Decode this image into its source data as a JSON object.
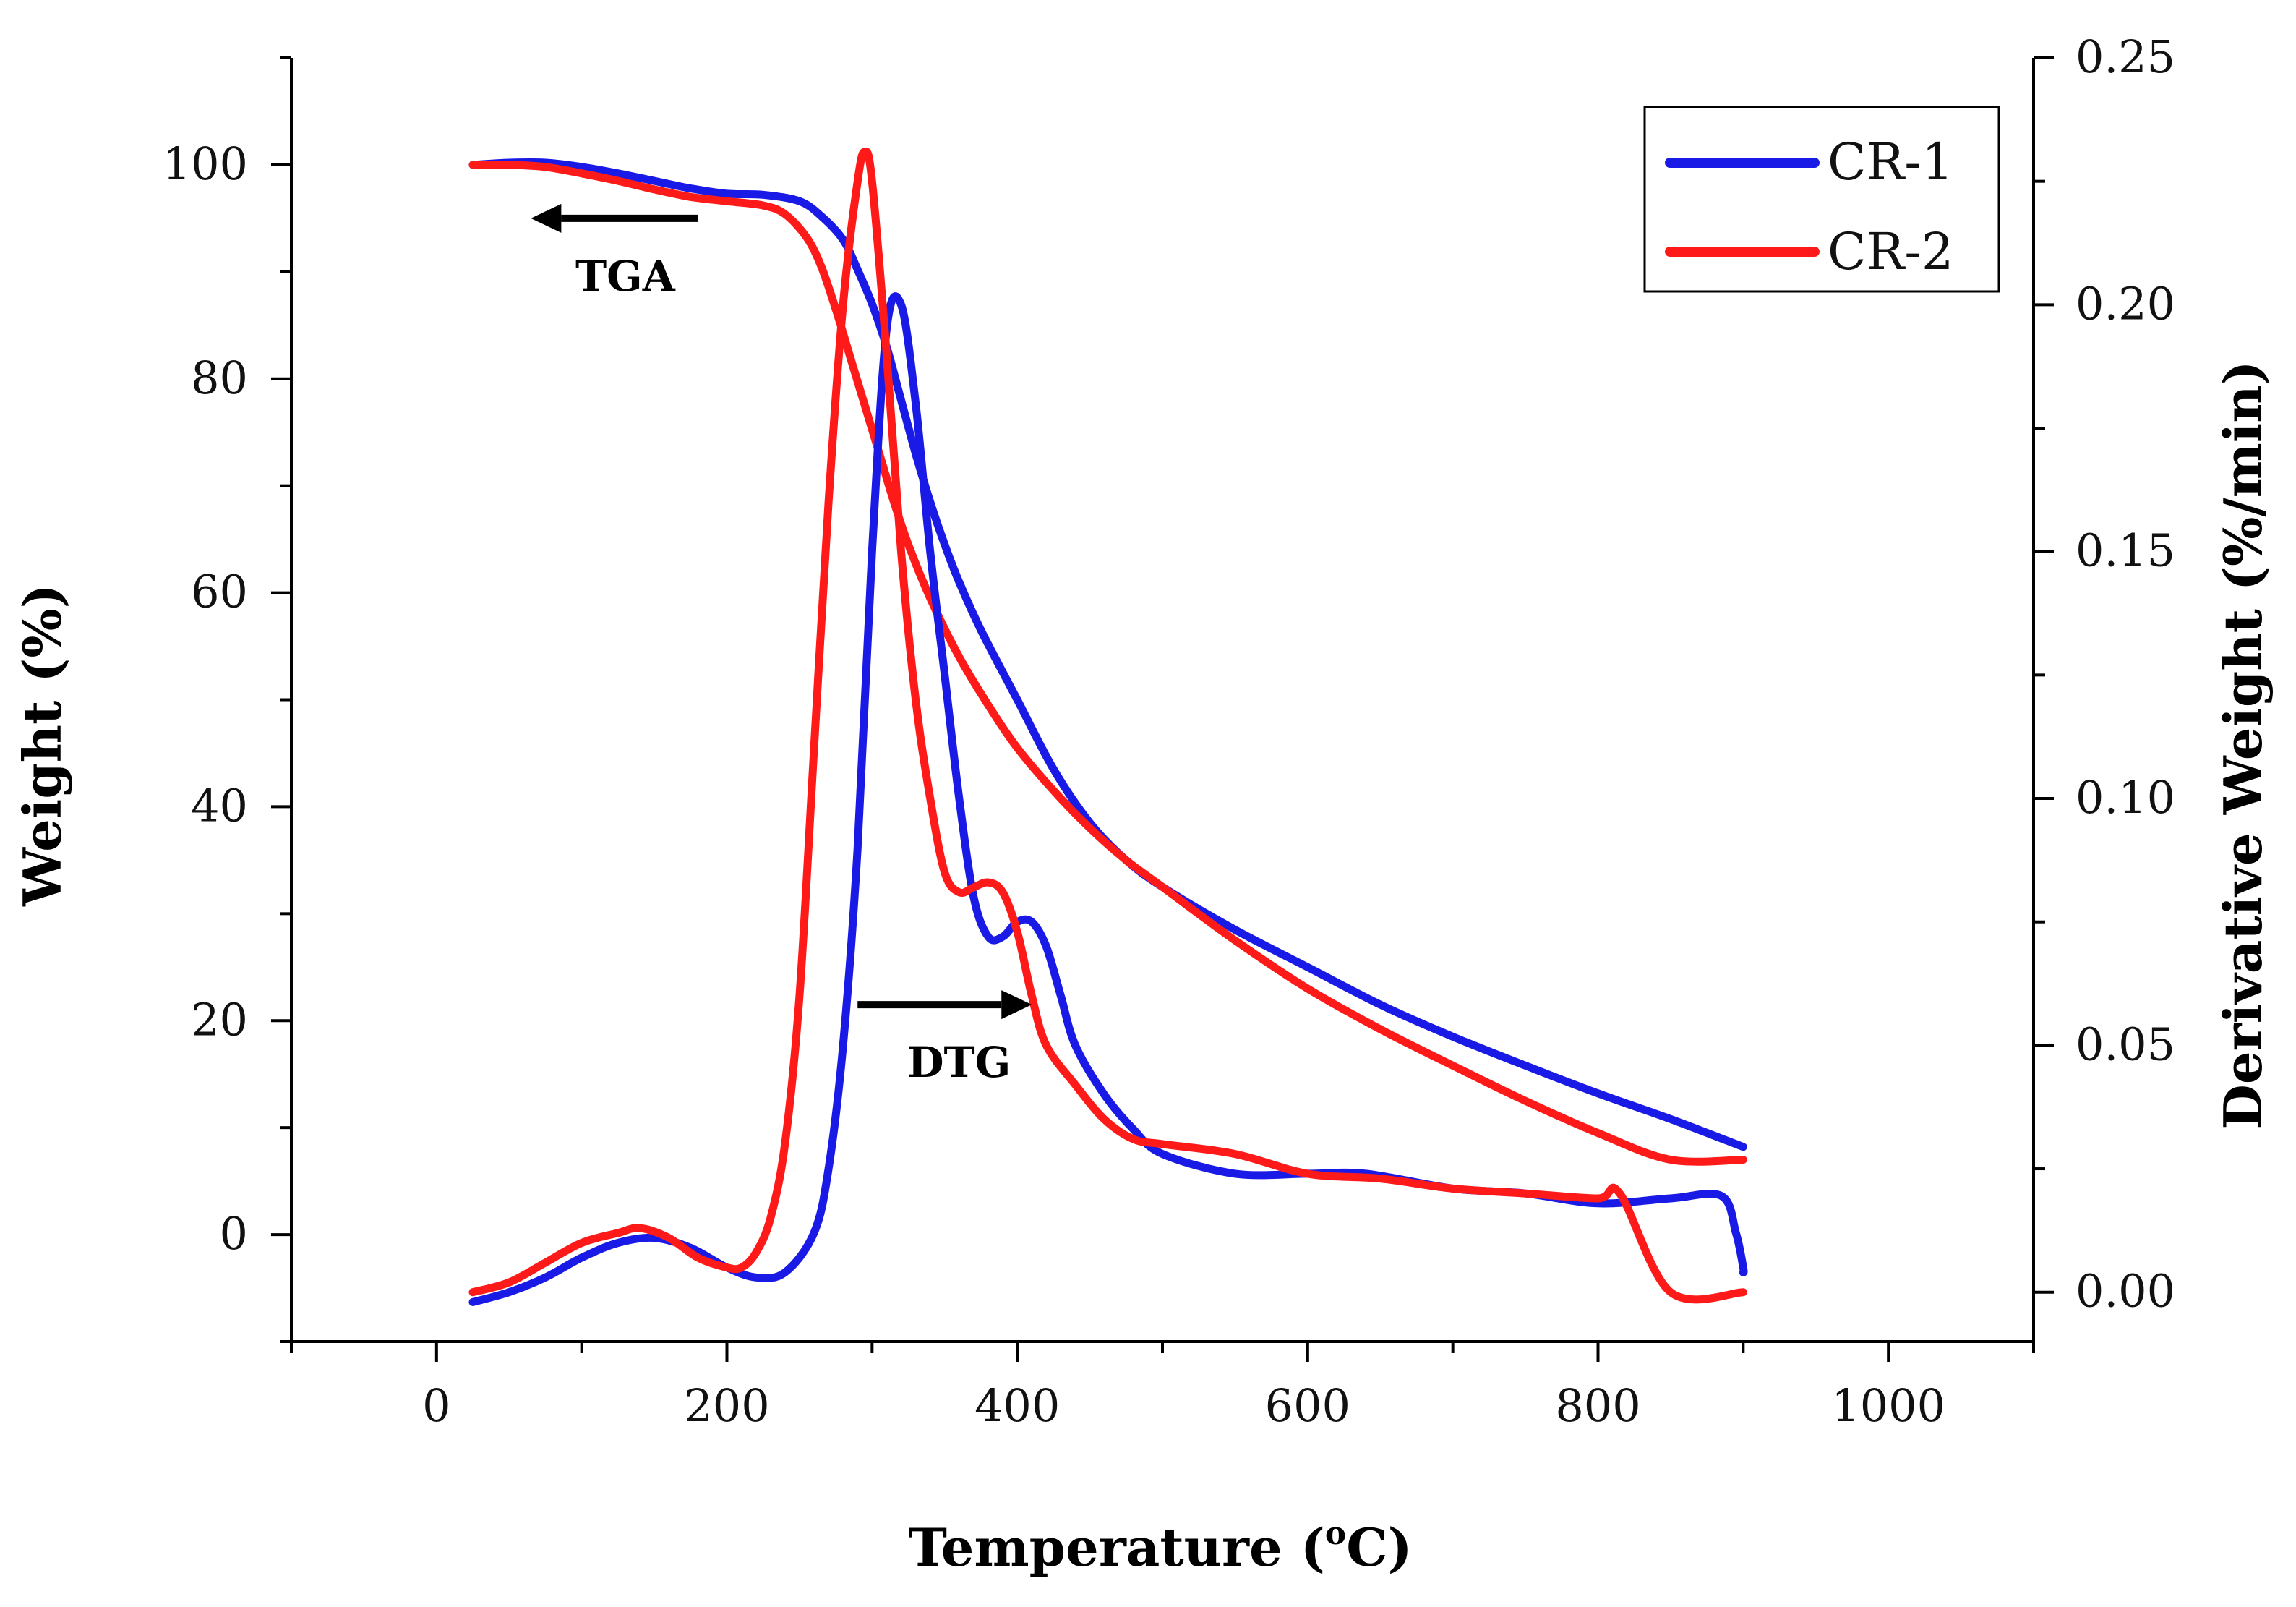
{
  "chart_data": {
    "type": "line",
    "xlabel": "Temperature (°C)",
    "xlabel_main": "Temperature (",
    "xlabel_sup": "o",
    "xlabel_end": "C)",
    "ylabel": "Weight (%)",
    "y2label": "Derivative Weight (%/min)",
    "xlim": [
      -100,
      1100
    ],
    "ylim": [
      -10,
      110
    ],
    "y2lim": [
      -0.01,
      0.25
    ],
    "xticks": [
      0,
      200,
      400,
      600,
      800,
      1000
    ],
    "yticks": [
      0,
      20,
      40,
      60,
      80,
      100
    ],
    "y2ticks": [
      "0.00",
      "0.05",
      "0.10",
      "0.15",
      "0.20",
      "0.25"
    ],
    "grid": false,
    "legend_position": "top-right",
    "legend": [
      {
        "name": "CR-1",
        "color": "#1a1ae6"
      },
      {
        "name": "CR-2",
        "color": "#ff1a1a"
      }
    ],
    "annotations": [
      {
        "text": "TGA",
        "arrow": "left",
        "x": 180,
        "y": 95,
        "x_end": 65
      },
      {
        "text": "DTG",
        "arrow": "right",
        "x": 290,
        "y": 21.5,
        "x_end": 410
      }
    ],
    "series": [
      {
        "name": "CR-1",
        "kind": "TGA",
        "axis": "left",
        "color": "#1a1ae6",
        "x": [
          25,
          50,
          75,
          100,
          125,
          150,
          175,
          200,
          225,
          250,
          265,
          280,
          290,
          300,
          310,
          320,
          330,
          340,
          350,
          360,
          375,
          400,
          425,
          450,
          475,
          500,
          550,
          600,
          650,
          700,
          750,
          800,
          850,
          900
        ],
        "y": [
          100,
          100.2,
          100.2,
          99.8,
          99.2,
          98.5,
          97.8,
          97.3,
          97.2,
          96.6,
          95.2,
          93,
          90.2,
          87,
          83,
          78,
          73,
          68.5,
          64.5,
          61,
          56.5,
          50,
          43.5,
          38.5,
          35,
          32.5,
          28.5,
          25,
          21.5,
          18.5,
          15.8,
          13.2,
          10.8,
          8.2
        ]
      },
      {
        "name": "CR-2",
        "kind": "TGA",
        "axis": "left",
        "color": "#ff1a1a",
        "x": [
          25,
          50,
          75,
          100,
          125,
          150,
          175,
          200,
          225,
          240,
          255,
          265,
          275,
          285,
          295,
          305,
          315,
          325,
          340,
          360,
          380,
          400,
          425,
          450,
          475,
          500,
          550,
          600,
          650,
          700,
          750,
          800,
          850,
          900
        ],
        "y": [
          100,
          100,
          99.8,
          99.2,
          98.5,
          97.7,
          97,
          96.6,
          96.2,
          95.4,
          93.2,
          90.5,
          86.5,
          82,
          77.5,
          73,
          68.5,
          64.5,
          59.5,
          54,
          49.5,
          45.5,
          41.5,
          38,
          35,
          32.5,
          27.5,
          23,
          19.2,
          15.8,
          12.5,
          9.5,
          7,
          7
        ]
      },
      {
        "name": "CR-1",
        "kind": "DTG",
        "axis": "right",
        "color": "#1a1ae6",
        "x": [
          25,
          50,
          75,
          100,
          125,
          150,
          175,
          200,
          220,
          240,
          260,
          270,
          280,
          290,
          300,
          310,
          320,
          330,
          340,
          350,
          360,
          370,
          380,
          390,
          400,
          410,
          420,
          430,
          440,
          460,
          480,
          500,
          550,
          600,
          640,
          700,
          750,
          800,
          850,
          885,
          895,
          900,
          900
        ],
        "y": [
          -0.002,
          0.0,
          0.003,
          0.007,
          0.01,
          0.011,
          0.009,
          0.005,
          0.003,
          0.004,
          0.012,
          0.025,
          0.05,
          0.09,
          0.15,
          0.195,
          0.2,
          0.18,
          0.15,
          0.125,
          0.1,
          0.08,
          0.072,
          0.072,
          0.075,
          0.075,
          0.07,
          0.06,
          0.05,
          0.04,
          0.033,
          0.028,
          0.024,
          0.024,
          0.024,
          0.021,
          0.02,
          0.018,
          0.019,
          0.0195,
          0.012,
          0.005,
          0.004
        ]
      },
      {
        "name": "CR-2",
        "kind": "DTG",
        "axis": "right",
        "color": "#ff1a1a",
        "x": [
          25,
          50,
          75,
          100,
          125,
          140,
          160,
          180,
          200,
          210,
          220,
          230,
          240,
          250,
          260,
          270,
          280,
          290,
          295,
          300,
          310,
          320,
          330,
          340,
          350,
          360,
          370,
          380,
          390,
          400,
          410,
          420,
          440,
          460,
          480,
          500,
          550,
          600,
          650,
          700,
          750,
          800,
          815,
          850,
          900
        ],
        "y": [
          0.0,
          0.002,
          0.006,
          0.01,
          0.012,
          0.013,
          0.011,
          0.007,
          0.005,
          0.005,
          0.008,
          0.015,
          0.03,
          0.06,
          0.11,
          0.16,
          0.2,
          0.225,
          0.231,
          0.225,
          0.19,
          0.15,
          0.12,
          0.1,
          0.085,
          0.081,
          0.082,
          0.083,
          0.081,
          0.073,
          0.06,
          0.05,
          0.042,
          0.035,
          0.031,
          0.03,
          0.028,
          0.024,
          0.023,
          0.021,
          0.02,
          0.019,
          0.02,
          0.0,
          0.0
        ]
      }
    ]
  }
}
